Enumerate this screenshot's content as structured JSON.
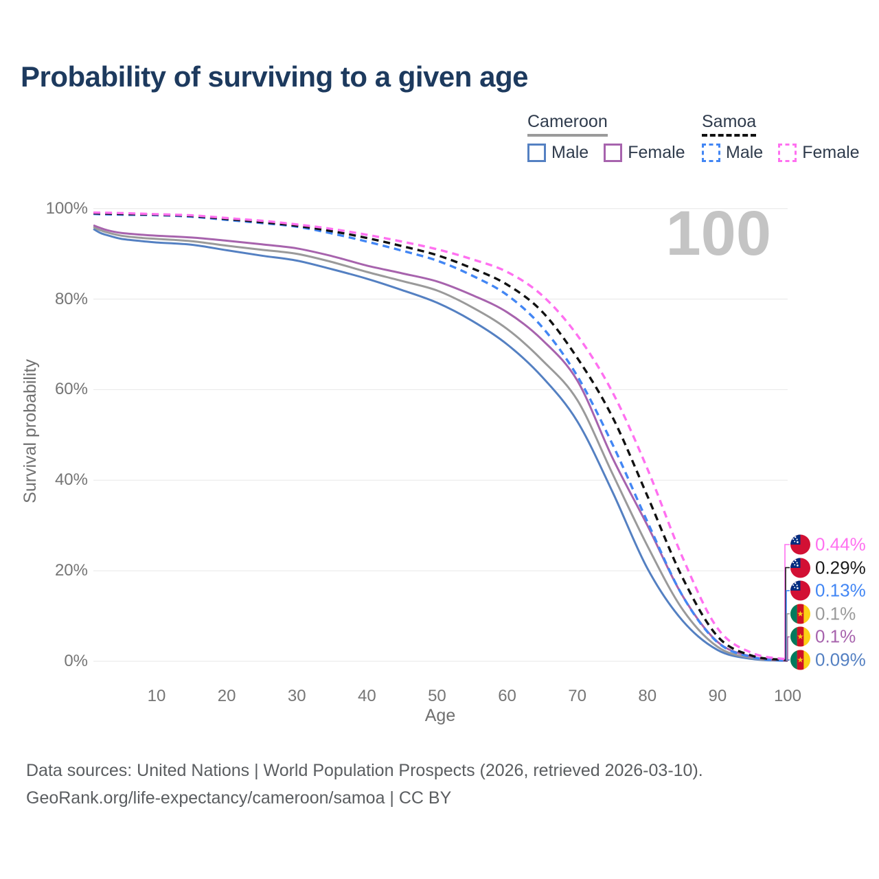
{
  "title": "Probability of surviving to a given age",
  "watermark_age": "100",
  "legend": {
    "groups": [
      {
        "label": "Cameroon",
        "underline_style": "solid",
        "underline_color": "#9a9a9a",
        "items": [
          {
            "label": "Male",
            "color": "#5480c2",
            "dashed": false
          },
          {
            "label": "Female",
            "color": "#a763ad",
            "dashed": false
          }
        ]
      },
      {
        "label": "Samoa",
        "underline_style": "dashed",
        "underline_color": "#111111",
        "items": [
          {
            "label": "Male",
            "color": "#4286f4",
            "dashed": true
          },
          {
            "label": "Female",
            "color": "#ff70f0",
            "dashed": true
          }
        ]
      }
    ]
  },
  "chart_data": {
    "type": "line",
    "title": "Probability of surviving to a given age",
    "xlabel": "Age",
    "ylabel": "Survival probability",
    "xlim": [
      1,
      100
    ],
    "ylim": [
      0,
      100
    ],
    "grid": "horizontal-only",
    "legend_position": "top-right",
    "x_tick_values": [
      10,
      20,
      30,
      40,
      50,
      60,
      70,
      80,
      90,
      100
    ],
    "x_tick_labels": [
      "10",
      "20",
      "30",
      "40",
      "50",
      "60",
      "70",
      "80",
      "90",
      "100"
    ],
    "y_tick_values": [
      0,
      20,
      40,
      60,
      80,
      100
    ],
    "y_tick_labels": [
      "0%",
      "20%",
      "40%",
      "60%",
      "80%",
      "100%"
    ],
    "series": [
      {
        "id": "cameroon-male",
        "name": "Cameroon Male",
        "color": "#5480c2",
        "dashed": false,
        "points": [
          [
            1,
            95.5
          ],
          [
            2,
            94.6
          ],
          [
            3,
            94.1
          ],
          [
            5,
            93.3
          ],
          [
            8,
            92.8
          ],
          [
            10,
            92.5
          ],
          [
            15,
            92.0
          ],
          [
            20,
            90.8
          ],
          [
            25,
            89.6
          ],
          [
            30,
            88.5
          ],
          [
            35,
            86.6
          ],
          [
            40,
            84.5
          ],
          [
            45,
            82.0
          ],
          [
            50,
            79.2
          ],
          [
            55,
            75.2
          ],
          [
            60,
            70.0
          ],
          [
            65,
            62.8
          ],
          [
            70,
            53.0
          ],
          [
            75,
            37.5
          ],
          [
            80,
            20.5
          ],
          [
            85,
            9.0
          ],
          [
            90,
            2.5
          ],
          [
            95,
            0.5
          ],
          [
            100,
            0.09
          ]
        ]
      },
      {
        "id": "cameroon-total",
        "name": "Cameroon",
        "color": "#9a9a9a",
        "dashed": false,
        "points": [
          [
            1,
            95.9
          ],
          [
            2,
            95.2
          ],
          [
            3,
            94.7
          ],
          [
            5,
            94.0
          ],
          [
            8,
            93.5
          ],
          [
            10,
            93.3
          ],
          [
            15,
            92.8
          ],
          [
            20,
            91.8
          ],
          [
            25,
            90.9
          ],
          [
            30,
            90.0
          ],
          [
            35,
            88.2
          ],
          [
            40,
            86.0
          ],
          [
            45,
            84.0
          ],
          [
            50,
            81.9
          ],
          [
            55,
            78.2
          ],
          [
            60,
            73.4
          ],
          [
            65,
            66.5
          ],
          [
            70,
            57.7
          ],
          [
            75,
            41.5
          ],
          [
            80,
            25.5
          ],
          [
            85,
            11.5
          ],
          [
            90,
            3.2
          ],
          [
            95,
            0.7
          ],
          [
            100,
            0.1
          ]
        ]
      },
      {
        "id": "cameroon-female",
        "name": "Cameroon Female",
        "color": "#a763ad",
        "dashed": false,
        "points": [
          [
            1,
            96.3
          ],
          [
            2,
            95.7
          ],
          [
            3,
            95.2
          ],
          [
            5,
            94.6
          ],
          [
            8,
            94.2
          ],
          [
            10,
            94.0
          ],
          [
            15,
            93.6
          ],
          [
            20,
            92.9
          ],
          [
            25,
            92.1
          ],
          [
            30,
            91.2
          ],
          [
            35,
            89.5
          ],
          [
            40,
            87.4
          ],
          [
            45,
            85.7
          ],
          [
            50,
            83.9
          ],
          [
            55,
            80.9
          ],
          [
            60,
            77.1
          ],
          [
            65,
            71.0
          ],
          [
            70,
            62.0
          ],
          [
            75,
            45.0
          ],
          [
            80,
            30.0
          ],
          [
            85,
            14.5
          ],
          [
            90,
            4.3
          ],
          [
            95,
            1.0
          ],
          [
            100,
            0.1
          ]
        ]
      },
      {
        "id": "samoa-male",
        "name": "Samoa Male",
        "color": "#4286f4",
        "dashed": true,
        "points": [
          [
            1,
            98.8
          ],
          [
            5,
            98.65
          ],
          [
            10,
            98.55
          ],
          [
            15,
            98.2
          ],
          [
            20,
            97.5
          ],
          [
            25,
            96.8
          ],
          [
            30,
            96.0
          ],
          [
            35,
            94.5
          ],
          [
            40,
            92.7
          ],
          [
            45,
            90.7
          ],
          [
            50,
            88.5
          ],
          [
            55,
            85.2
          ],
          [
            60,
            80.9
          ],
          [
            65,
            73.8
          ],
          [
            70,
            63.0
          ],
          [
            75,
            48.0
          ],
          [
            80,
            30.8
          ],
          [
            85,
            14.5
          ],
          [
            90,
            4.2
          ],
          [
            95,
            0.9
          ],
          [
            100,
            0.13
          ]
        ]
      },
      {
        "id": "samoa-total",
        "name": "Samoa",
        "color": "#111111",
        "dashed": true,
        "points": [
          [
            1,
            98.95
          ],
          [
            5,
            98.8
          ],
          [
            10,
            98.65
          ],
          [
            15,
            98.35
          ],
          [
            20,
            97.7
          ],
          [
            25,
            97.0
          ],
          [
            30,
            96.2
          ],
          [
            35,
            95.0
          ],
          [
            40,
            93.5
          ],
          [
            45,
            91.7
          ],
          [
            50,
            89.7
          ],
          [
            55,
            86.8
          ],
          [
            60,
            83.2
          ],
          [
            65,
            77.2
          ],
          [
            70,
            67.0
          ],
          [
            75,
            54.0
          ],
          [
            80,
            36.5
          ],
          [
            85,
            18.5
          ],
          [
            90,
            5.5
          ],
          [
            95,
            1.2
          ],
          [
            100,
            0.29
          ]
        ]
      },
      {
        "id": "samoa-female",
        "name": "Samoa Female",
        "color": "#ff70f0",
        "dashed": true,
        "points": [
          [
            1,
            99.1
          ],
          [
            5,
            99.0
          ],
          [
            10,
            98.75
          ],
          [
            15,
            98.5
          ],
          [
            20,
            97.9
          ],
          [
            25,
            97.3
          ],
          [
            30,
            96.5
          ],
          [
            35,
            95.5
          ],
          [
            40,
            94.2
          ],
          [
            45,
            92.7
          ],
          [
            50,
            91.0
          ],
          [
            55,
            88.8
          ],
          [
            60,
            86.0
          ],
          [
            65,
            80.8
          ],
          [
            70,
            72.0
          ],
          [
            75,
            59.5
          ],
          [
            80,
            42.5
          ],
          [
            85,
            23.0
          ],
          [
            90,
            7.3
          ],
          [
            95,
            1.8
          ],
          [
            100,
            0.44
          ]
        ]
      }
    ],
    "end_labels": [
      {
        "series": "samoa-female",
        "flag": "samoa",
        "text": "0.44%",
        "color": "#ff70f0"
      },
      {
        "series": "samoa-total",
        "flag": "samoa",
        "text": "0.29%",
        "color": "#1a1a1a"
      },
      {
        "series": "samoa-male",
        "flag": "samoa",
        "text": "0.13%",
        "color": "#4286f4"
      },
      {
        "series": "cameroon-total",
        "flag": "cameroon",
        "text": "0.1%",
        "color": "#9a9a9a"
      },
      {
        "series": "cameroon-female",
        "flag": "cameroon",
        "text": "0.1%",
        "color": "#a763ad"
      },
      {
        "series": "cameroon-male",
        "flag": "cameroon",
        "text": "0.09%",
        "color": "#5480c2"
      }
    ],
    "flag_colors": {
      "samoa": {
        "red": "#d21034",
        "blue": "#002b7f",
        "stars": "#ffffff"
      },
      "cameroon": {
        "green": "#007a5e",
        "red": "#ce1126",
        "yellow": "#fcd116"
      }
    }
  },
  "footer": {
    "line1": "Data sources: United Nations | World Population Prospects (2026, retrieved 2026-03-10).",
    "line2": "GeoRank.org/life-expectancy/cameroon/samoa | CC BY"
  }
}
